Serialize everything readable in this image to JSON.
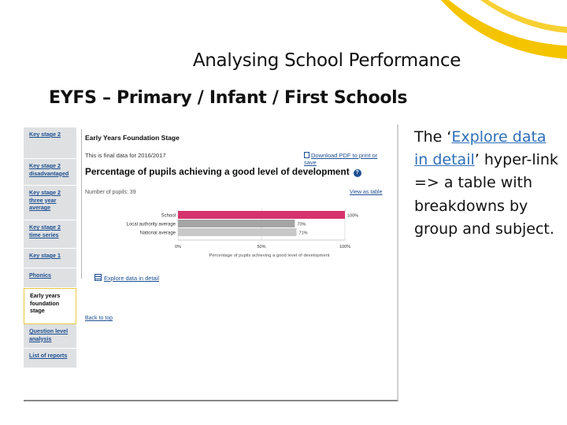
{
  "slide": {
    "title": "Analysing School Performance",
    "subtitle": "EYFS – Primary  / Infant / First Schools",
    "accent_color": "#f5c400"
  },
  "sidebar": {
    "items": [
      {
        "label": "Key stage 2",
        "current": false
      },
      {
        "label": "Key stage 2 disadvantaged",
        "current": false
      },
      {
        "label": "Key stage 2 three year average",
        "current": false
      },
      {
        "label": "Key stage 2 time series",
        "current": false
      },
      {
        "label": "Key stage 1",
        "current": false
      },
      {
        "label": "Phonics",
        "current": false
      },
      {
        "label": "Early years foundation stage",
        "current": true
      },
      {
        "label": "Question level analysis",
        "current": false
      },
      {
        "label": "List of reports",
        "current": false
      }
    ]
  },
  "panel": {
    "heading": "Early Years Foundation Stage",
    "data_note": "This is final data for 2016/2017",
    "download_label": "Download PDF to print or save",
    "measure_heading": "Percentage of pupils achieving a good level of development",
    "pupil_count": "Number of pupils: 39",
    "view_table_label": "View as table",
    "explore_label": "Explore data in detail",
    "back_to_top": "Back to top"
  },
  "chart_data": {
    "type": "bar",
    "orientation": "horizontal",
    "categories": [
      "School",
      "Local authority average",
      "National average"
    ],
    "values": [
      100,
      70,
      71
    ],
    "value_labels": [
      "100%",
      "70%",
      "71%"
    ],
    "colors": [
      "#d6336c",
      "#a5a5a5",
      "#c8c8c8"
    ],
    "xlim": [
      0,
      100
    ],
    "x_ticks": [
      "0%",
      "50%",
      "100%"
    ],
    "xlabel": "Percentage of pupils achieving a good level of development",
    "grid": true
  },
  "side_text": {
    "prefix": "The ‘",
    "link": "Explore data in detail",
    "suffix": "’ hyper-link => a table with breakdowns by group and subject."
  }
}
